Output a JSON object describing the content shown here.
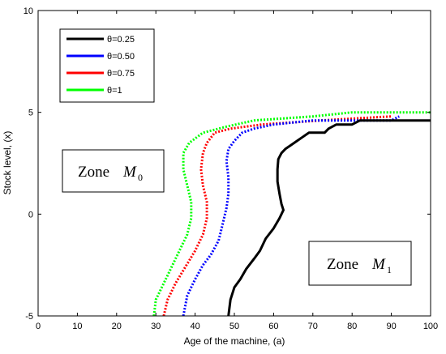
{
  "chart_data": {
    "type": "line",
    "title": "",
    "xlabel": "Age of the machine, (a)",
    "ylabel": "Stock level, (x)",
    "xlim": [
      0,
      100
    ],
    "ylim": [
      -5,
      10
    ],
    "xticks": [
      "0",
      "10",
      "20",
      "30",
      "40",
      "50",
      "60",
      "70",
      "80",
      "90",
      "100"
    ],
    "yticks": [
      "-5",
      "0",
      "5",
      "10"
    ],
    "grid": false,
    "legend_position": "top-left",
    "series": [
      {
        "name": "θ=0.25",
        "color": "#000000",
        "dash": "solid",
        "points": [
          [
            48.5,
            -5
          ],
          [
            49,
            -4.2
          ],
          [
            50,
            -3.6
          ],
          [
            51.5,
            -3.2
          ],
          [
            53,
            -2.7
          ],
          [
            55,
            -2.2
          ],
          [
            56.5,
            -1.8
          ],
          [
            58,
            -1.2
          ],
          [
            60,
            -0.7
          ],
          [
            61.5,
            -0.2
          ],
          [
            62.5,
            0.2
          ],
          [
            62,
            0.5
          ],
          [
            61.5,
            1.0
          ],
          [
            61,
            1.6
          ],
          [
            61,
            2.2
          ],
          [
            61.2,
            2.7
          ],
          [
            62,
            3.0
          ],
          [
            63,
            3.2
          ],
          [
            64.5,
            3.4
          ],
          [
            66,
            3.6
          ],
          [
            67.5,
            3.8
          ],
          [
            69,
            4.0
          ],
          [
            73,
            4.0
          ],
          [
            74,
            4.2
          ],
          [
            76,
            4.4
          ],
          [
            80,
            4.4
          ],
          [
            82,
            4.6
          ],
          [
            100,
            4.6
          ]
        ]
      },
      {
        "name": "θ=0.50",
        "color": "#0000ff",
        "dash": "dotted",
        "points": [
          [
            37,
            -5
          ],
          [
            38,
            -4
          ],
          [
            40,
            -3.2
          ],
          [
            42,
            -2.5
          ],
          [
            44,
            -2
          ],
          [
            46,
            -1.3
          ],
          [
            47,
            -0.5
          ],
          [
            48,
            0.3
          ],
          [
            48.5,
            1
          ],
          [
            48.5,
            1.8
          ],
          [
            48,
            2.6
          ],
          [
            48.5,
            3.2
          ],
          [
            50,
            3.6
          ],
          [
            52,
            4
          ],
          [
            55,
            4.2
          ],
          [
            60,
            4.4
          ],
          [
            70,
            4.6
          ],
          [
            90,
            4.6
          ],
          [
            92,
            4.8
          ]
        ]
      },
      {
        "name": "θ=0.75",
        "color": "#ff0000",
        "dash": "dotted",
        "points": [
          [
            32,
            -5
          ],
          [
            33,
            -4.2
          ],
          [
            35,
            -3.4
          ],
          [
            37.5,
            -2.6
          ],
          [
            40,
            -1.8
          ],
          [
            42,
            -1
          ],
          [
            43,
            -0.2
          ],
          [
            43,
            0.6
          ],
          [
            42,
            1.4
          ],
          [
            41.5,
            2.2
          ],
          [
            42,
            3
          ],
          [
            43,
            3.5
          ],
          [
            45,
            4
          ],
          [
            49,
            4.2
          ],
          [
            57,
            4.4
          ],
          [
            72,
            4.6
          ],
          [
            90,
            4.8
          ]
        ]
      },
      {
        "name": "θ=1",
        "color": "#00ff00",
        "dash": "dotted",
        "points": [
          [
            29.5,
            -5
          ],
          [
            30,
            -4.2
          ],
          [
            32,
            -3.4
          ],
          [
            34,
            -2.6
          ],
          [
            36,
            -1.8
          ],
          [
            38,
            -1
          ],
          [
            39,
            -0.2
          ],
          [
            39,
            0.6
          ],
          [
            38,
            1.4
          ],
          [
            37,
            2.2
          ],
          [
            37,
            3
          ],
          [
            38.5,
            3.5
          ],
          [
            42,
            4
          ],
          [
            48,
            4.3
          ],
          [
            55,
            4.6
          ],
          [
            70,
            4.8
          ],
          [
            80,
            5
          ],
          [
            100,
            5
          ]
        ]
      }
    ],
    "annotations": [
      {
        "label": "Zone",
        "math": "M",
        "sub": "0"
      },
      {
        "label": "Zone",
        "math": "M",
        "sub": "1"
      }
    ]
  }
}
